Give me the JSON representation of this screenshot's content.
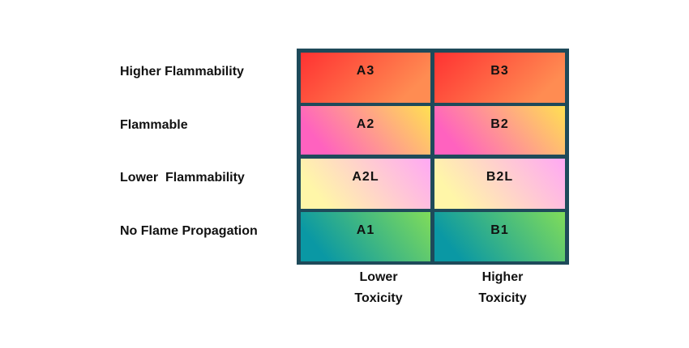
{
  "rows": [
    {
      "label": "Higher Flammability",
      "cells": [
        "A3",
        "B3"
      ]
    },
    {
      "label": "Flammable",
      "cells": [
        "A2",
        "B2"
      ]
    },
    {
      "label": "Lower  Flammability",
      "cells": [
        "A2L",
        "B2L"
      ]
    },
    {
      "label": "No Flame Propagation",
      "cells": [
        "A1",
        "B1"
      ]
    }
  ],
  "columns": [
    {
      "lines": [
        "Lower",
        "Toxicity"
      ]
    },
    {
      "lines": [
        "Higher",
        "Toxicity"
      ]
    }
  ]
}
